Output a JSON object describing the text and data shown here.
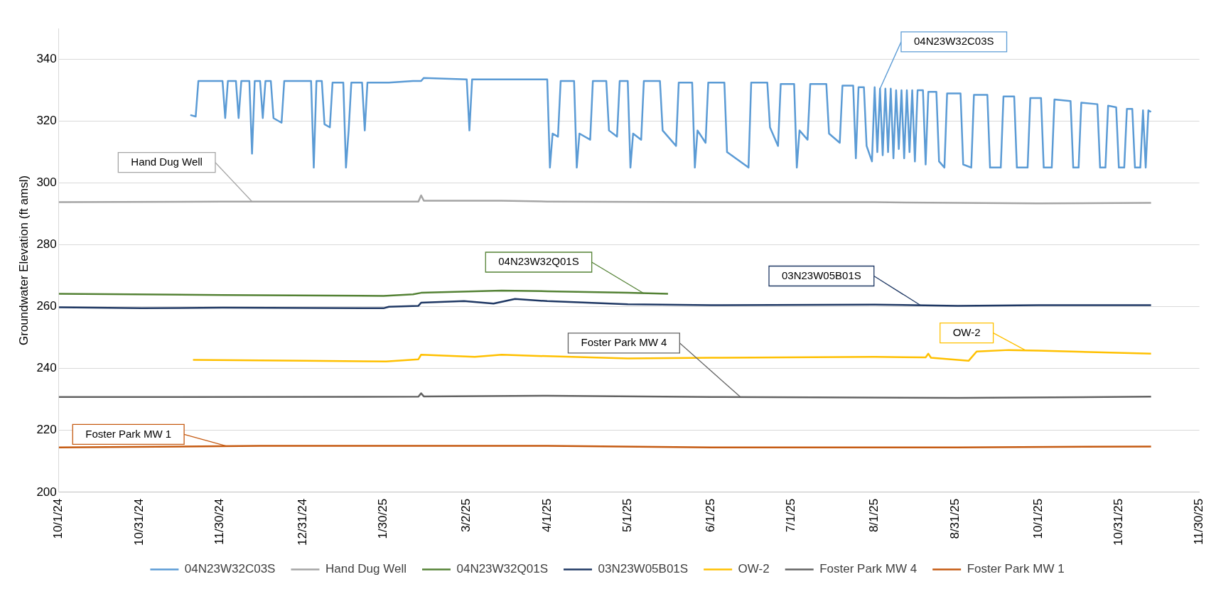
{
  "chart_data": {
    "type": "line",
    "ylabel": "Groundwater Elevation (ft amsl)",
    "xlim": [
      "2024-10-01",
      "2025-11-30"
    ],
    "xticks": [
      {
        "value": "2024-10-01",
        "label": "10/1/24"
      },
      {
        "value": "2024-10-31",
        "label": "10/31/24"
      },
      {
        "value": "2024-11-30",
        "label": "11/30/24"
      },
      {
        "value": "2024-12-31",
        "label": "12/31/24"
      },
      {
        "value": "2025-01-30",
        "label": "1/30/25"
      },
      {
        "value": "2025-03-02",
        "label": "3/2/25"
      },
      {
        "value": "2025-04-01",
        "label": "4/1/25"
      },
      {
        "value": "2025-05-01",
        "label": "5/1/25"
      },
      {
        "value": "2025-06-01",
        "label": "6/1/25"
      },
      {
        "value": "2025-07-01",
        "label": "7/1/25"
      },
      {
        "value": "2025-08-01",
        "label": "8/1/25"
      },
      {
        "value": "2025-08-31",
        "label": "8/31/25"
      },
      {
        "value": "2025-10-01",
        "label": "10/1/25"
      },
      {
        "value": "2025-10-31",
        "label": "10/31/25"
      },
      {
        "value": "2025-11-30",
        "label": "11/30/25"
      }
    ],
    "ylim": [
      200,
      350
    ],
    "yticks": [
      200,
      220,
      240,
      260,
      280,
      300,
      320,
      340
    ],
    "grid": "y",
    "legend": "bottom",
    "marker": "none",
    "line_style": "solid",
    "series": [
      {
        "name": "04N23W32C03S",
        "color": "#5b9bd5",
        "x": [
          "2024-11-19",
          "2024-11-21",
          "2024-11-22",
          "2024-12-01",
          "2024-12-02",
          "2024-12-03",
          "2024-12-06",
          "2024-12-07",
          "2024-12-08",
          "2024-12-11",
          "2024-12-12",
          "2024-12-13",
          "2024-12-15",
          "2024-12-16",
          "2024-12-17",
          "2024-12-19",
          "2024-12-20",
          "2024-12-23",
          "2024-12-24",
          "2025-01-03",
          "2025-01-04",
          "2025-01-05",
          "2025-01-07",
          "2025-01-08",
          "2025-01-10",
          "2025-01-11",
          "2025-01-15",
          "2025-01-16",
          "2025-01-17",
          "2025-01-18",
          "2025-01-22",
          "2025-01-23",
          "2025-01-24",
          "2025-02-01",
          "2025-02-10",
          "2025-02-13",
          "2025-02-14",
          "2025-03-02",
          "2025-03-03",
          "2025-03-04",
          "2025-03-28",
          "2025-04-01",
          "2025-04-02",
          "2025-04-03",
          "2025-04-05",
          "2025-04-06",
          "2025-04-11",
          "2025-04-12",
          "2025-04-13",
          "2025-04-17",
          "2025-04-18",
          "2025-04-23",
          "2025-04-24",
          "2025-04-27",
          "2025-04-28",
          "2025-05-01",
          "2025-05-02",
          "2025-05-03",
          "2025-05-06",
          "2025-05-07",
          "2025-05-13",
          "2025-05-14",
          "2025-05-19",
          "2025-05-20",
          "2025-05-25",
          "2025-05-26",
          "2025-05-27",
          "2025-05-30",
          "2025-05-31",
          "2025-06-06",
          "2025-06-07",
          "2025-06-15",
          "2025-06-16",
          "2025-06-22",
          "2025-06-23",
          "2025-06-26",
          "2025-06-27",
          "2025-07-02",
          "2025-07-03",
          "2025-07-04",
          "2025-07-07",
          "2025-07-08",
          "2025-07-14",
          "2025-07-15",
          "2025-07-19",
          "2025-07-20",
          "2025-07-24",
          "2025-07-25",
          "2025-07-26",
          "2025-07-28",
          "2025-07-29",
          "2025-07-31",
          "2025-08-01",
          "2025-08-02",
          "2025-08-03",
          "2025-08-04",
          "2025-08-05",
          "2025-08-06",
          "2025-08-07",
          "2025-08-08",
          "2025-08-09",
          "2025-08-10",
          "2025-08-11",
          "2025-08-12",
          "2025-08-13",
          "2025-08-14",
          "2025-08-15",
          "2025-08-16",
          "2025-08-17",
          "2025-08-19",
          "2025-08-20",
          "2025-08-21",
          "2025-08-24",
          "2025-08-25",
          "2025-08-27",
          "2025-08-28",
          "2025-09-02",
          "2025-09-03",
          "2025-09-06",
          "2025-09-07",
          "2025-09-12",
          "2025-09-13",
          "2025-09-17",
          "2025-09-18",
          "2025-09-22",
          "2025-09-23",
          "2025-09-27",
          "2025-09-28",
          "2025-10-02",
          "2025-10-03",
          "2025-10-06",
          "2025-10-07",
          "2025-10-13",
          "2025-10-14",
          "2025-10-16",
          "2025-10-17",
          "2025-10-23",
          "2025-10-24",
          "2025-10-26",
          "2025-10-27",
          "2025-10-30",
          "2025-10-31",
          "2025-11-02",
          "2025-11-03",
          "2025-11-05",
          "2025-11-06",
          "2025-11-08",
          "2025-11-09",
          "2025-11-10",
          "2025-11-11",
          "2025-11-12"
        ],
        "values": [
          322,
          321.5,
          333,
          333,
          321,
          333,
          333,
          321,
          333,
          333,
          309.5,
          333,
          333,
          321,
          333,
          333,
          321,
          319.5,
          333,
          333,
          305,
          333,
          333,
          319,
          318,
          332.5,
          332.5,
          305,
          317,
          332.5,
          332.5,
          317,
          332.5,
          332.5,
          333,
          333,
          334,
          333.5,
          317,
          333.5,
          333.5,
          333.5,
          305,
          316,
          315,
          333,
          333,
          305,
          316,
          314,
          333,
          333,
          317,
          315,
          333,
          333,
          305,
          316,
          314,
          333,
          333,
          317,
          312,
          332.5,
          332.5,
          305,
          317,
          313,
          332.5,
          332.5,
          310,
          305,
          332.5,
          332.5,
          318,
          312,
          332,
          332,
          305,
          317,
          314,
          332,
          332,
          316,
          313,
          331.5,
          331.5,
          308,
          331,
          331,
          312,
          307,
          331,
          310,
          330.5,
          309,
          330.5,
          310,
          330.5,
          308,
          330,
          311,
          330,
          308,
          330,
          310,
          330,
          307,
          330,
          330,
          306,
          329.5,
          329.5,
          307,
          305,
          329,
          329,
          306,
          305,
          328.5,
          328.5,
          305,
          305,
          328,
          328,
          305,
          305,
          327.5,
          327.5,
          305,
          305,
          327,
          326.5,
          305,
          305,
          326,
          325.5,
          305,
          305,
          325,
          324.5,
          305,
          305,
          324,
          324,
          305,
          305,
          323.5,
          305,
          323.5,
          323
        ]
      },
      {
        "name": "Hand Dug Well",
        "color": "#a5a5a5",
        "x": [
          "2024-10-01",
          "2024-12-01",
          "2025-01-15",
          "2025-02-12",
          "2025-02-13",
          "2025-02-14",
          "2025-03-15",
          "2025-04-01",
          "2025-06-01",
          "2025-08-01",
          "2025-10-01",
          "2025-11-12"
        ],
        "values": [
          293.8,
          294,
          294,
          294,
          296,
          294.3,
          294.3,
          294,
          293.8,
          293.8,
          293.4,
          293.6
        ]
      },
      {
        "name": "04N23W32Q01S",
        "color": "#548235",
        "x": [
          "2024-10-01",
          "2024-12-01",
          "2025-01-30",
          "2025-02-10",
          "2025-02-13",
          "2025-03-15",
          "2025-04-01",
          "2025-05-01",
          "2025-05-16"
        ],
        "values": [
          264.2,
          263.8,
          263.5,
          264,
          264.5,
          265.2,
          265,
          264.5,
          264.2
        ]
      },
      {
        "name": "03N23W05B01S",
        "color": "#1f3864",
        "x": [
          "2024-10-01",
          "2024-11-01",
          "2024-12-01",
          "2025-01-30",
          "2025-02-01",
          "2025-02-12",
          "2025-02-13",
          "2025-03-01",
          "2025-03-12",
          "2025-03-20",
          "2025-04-01",
          "2025-05-01",
          "2025-06-01",
          "2025-08-01",
          "2025-09-01",
          "2025-10-01",
          "2025-11-12"
        ],
        "values": [
          259.8,
          259.5,
          259.7,
          259.5,
          260,
          260.3,
          261.3,
          261.8,
          261,
          262.5,
          261.8,
          260.8,
          260.5,
          260.7,
          260.3,
          260.5,
          260.5
        ]
      },
      {
        "name": "OW-2",
        "color": "#ffc000",
        "x": [
          "2024-11-20",
          "2025-01-01",
          "2025-01-31",
          "2025-02-12",
          "2025-02-13",
          "2025-03-05",
          "2025-03-15",
          "2025-04-01",
          "2025-05-01",
          "2025-06-01",
          "2025-08-01",
          "2025-08-20",
          "2025-08-21",
          "2025-08-22",
          "2025-09-05",
          "2025-09-08",
          "2025-09-20",
          "2025-10-01",
          "2025-11-12"
        ],
        "values": [
          242.8,
          242.5,
          242.3,
          243,
          244.5,
          243.8,
          244.5,
          244,
          243.3,
          243.5,
          243.8,
          243.6,
          244.8,
          243.5,
          242.5,
          245.5,
          246,
          245.8,
          244.8
        ]
      },
      {
        "name": "Foster Park MW 4",
        "color": "#636363",
        "x": [
          "2024-10-01",
          "2025-02-12",
          "2025-02-13",
          "2025-02-14",
          "2025-04-01",
          "2025-06-01",
          "2025-09-01",
          "2025-11-12"
        ],
        "values": [
          230.8,
          230.9,
          232,
          231,
          231.2,
          230.8,
          230.5,
          230.9
        ]
      },
      {
        "name": "Foster Park MW 1",
        "color": "#c55a11",
        "x": [
          "2024-10-01",
          "2024-12-15",
          "2025-02-15",
          "2025-04-01",
          "2025-06-01",
          "2025-09-01",
          "2025-11-12"
        ],
        "values": [
          214.5,
          215,
          215,
          215,
          214.5,
          214.5,
          214.8
        ]
      }
    ],
    "annotations": [
      {
        "text": "04N23W32C03S",
        "x": "2025-08-03",
        "y": 330.5
      },
      {
        "text": "Hand Dug Well",
        "x": "2024-12-12",
        "y": 294
      },
      {
        "text": "04N23W32Q01S",
        "x": "2025-05-07",
        "y": 264.3
      },
      {
        "text": "03N23W05B01S",
        "x": "2025-08-18",
        "y": 260.5
      },
      {
        "text": "OW-2",
        "x": "2025-09-26",
        "y": 246
      },
      {
        "text": "Foster Park MW 4",
        "x": "2025-06-12",
        "y": 230.8
      },
      {
        "text": "Foster Park MW 1",
        "x": "2024-12-03",
        "y": 214.8
      }
    ]
  }
}
